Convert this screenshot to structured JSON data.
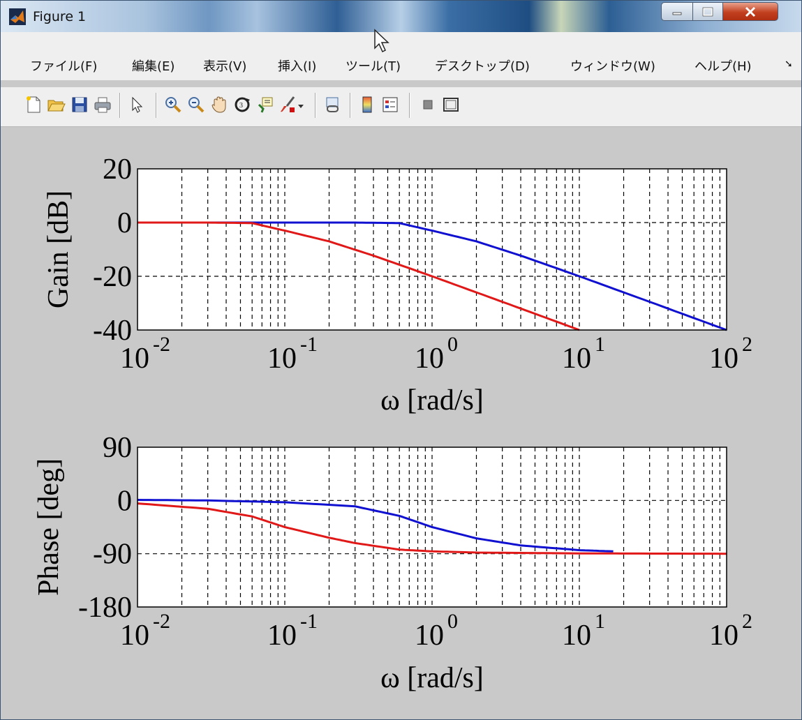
{
  "window": {
    "title": "Figure 1"
  },
  "menu": [
    "ファイル(F)",
    "編集(E)",
    "表示(V)",
    "挿入(I)",
    "ツール(T)",
    "デスクトップ(D)",
    "ウィンドウ(W)",
    "ヘルプ(H)"
  ],
  "toolbar_icons": [
    "new-figure-icon",
    "open-file-icon",
    "save-icon",
    "print-icon",
    "pointer-icon",
    "zoom-in-icon",
    "zoom-out-icon",
    "pan-hand-icon",
    "rotate-3d-icon",
    "data-cursor-icon",
    "brush-icon",
    "link-plot-icon",
    "colorbar-icon",
    "legend-icon",
    "hide-plot-tools-icon",
    "show-plot-tools-icon"
  ],
  "colors": {
    "blue_series": "#1010d0",
    "red_series": "#e01818",
    "background": "#c9c9c9"
  },
  "chart_data": [
    {
      "type": "line",
      "xscale": "log",
      "xlim": [
        0.01,
        100
      ],
      "ylim": [
        -40,
        20
      ],
      "yticks": [
        20,
        0,
        -20,
        -40
      ],
      "ytick_labels": [
        "20",
        "0",
        "-20",
        "-40"
      ],
      "xtick_labels": [
        {
          "base": "10",
          "exp": "-2"
        },
        {
          "base": "10",
          "exp": "-1"
        },
        {
          "base": "10",
          "exp": "0"
        },
        {
          "base": "10",
          "exp": "1"
        },
        {
          "base": "10",
          "exp": "2"
        }
      ],
      "xlabel": "ω [rad/s]",
      "ylabel": "Gain [dB]",
      "grid": true,
      "series": [
        {
          "color": "#1010d0",
          "x": [
            0.03,
            0.1,
            0.3,
            0.6,
            1,
            2,
            4,
            10,
            30,
            100
          ],
          "y": [
            0,
            0,
            0,
            -0.2,
            -3,
            -7,
            -12.3,
            -20,
            -29.5,
            -40
          ]
        },
        {
          "color": "#e01818",
          "x": [
            0.01,
            0.03,
            0.06,
            0.1,
            0.2,
            0.4,
            1,
            2,
            4,
            10
          ],
          "y": [
            0,
            0,
            -0.2,
            -3,
            -7,
            -12.3,
            -20,
            -26,
            -32,
            -40
          ]
        }
      ]
    },
    {
      "type": "line",
      "xscale": "log",
      "xlim": [
        0.01,
        100
      ],
      "ylim": [
        -180,
        90
      ],
      "yticks": [
        90,
        0,
        -90,
        -180
      ],
      "ytick_labels": [
        "90",
        "0",
        "-90",
        "-180"
      ],
      "xtick_labels": [
        {
          "base": "10",
          "exp": "-2"
        },
        {
          "base": "10",
          "exp": "-1"
        },
        {
          "base": "10",
          "exp": "0"
        },
        {
          "base": "10",
          "exp": "1"
        },
        {
          "base": "10",
          "exp": "2"
        }
      ],
      "xlabel": "ω [rad/s]",
      "ylabel": "Phase [deg]",
      "grid": true,
      "series": [
        {
          "color": "#1010d0",
          "x": [
            0.01,
            0.03,
            0.1,
            0.3,
            0.6,
            1,
            2,
            4,
            10,
            17
          ],
          "y": [
            1,
            0,
            -3,
            -10,
            -26,
            -45,
            -64,
            -76,
            -84,
            -86
          ]
        },
        {
          "color": "#e01818",
          "x": [
            0.01,
            0.03,
            0.06,
            0.1,
            0.2,
            0.3,
            0.6,
            1,
            2,
            10,
            100
          ],
          "y": [
            -5,
            -14,
            -27,
            -45,
            -63,
            -72,
            -83,
            -86,
            -88,
            -89.5,
            -90
          ]
        }
      ]
    }
  ]
}
